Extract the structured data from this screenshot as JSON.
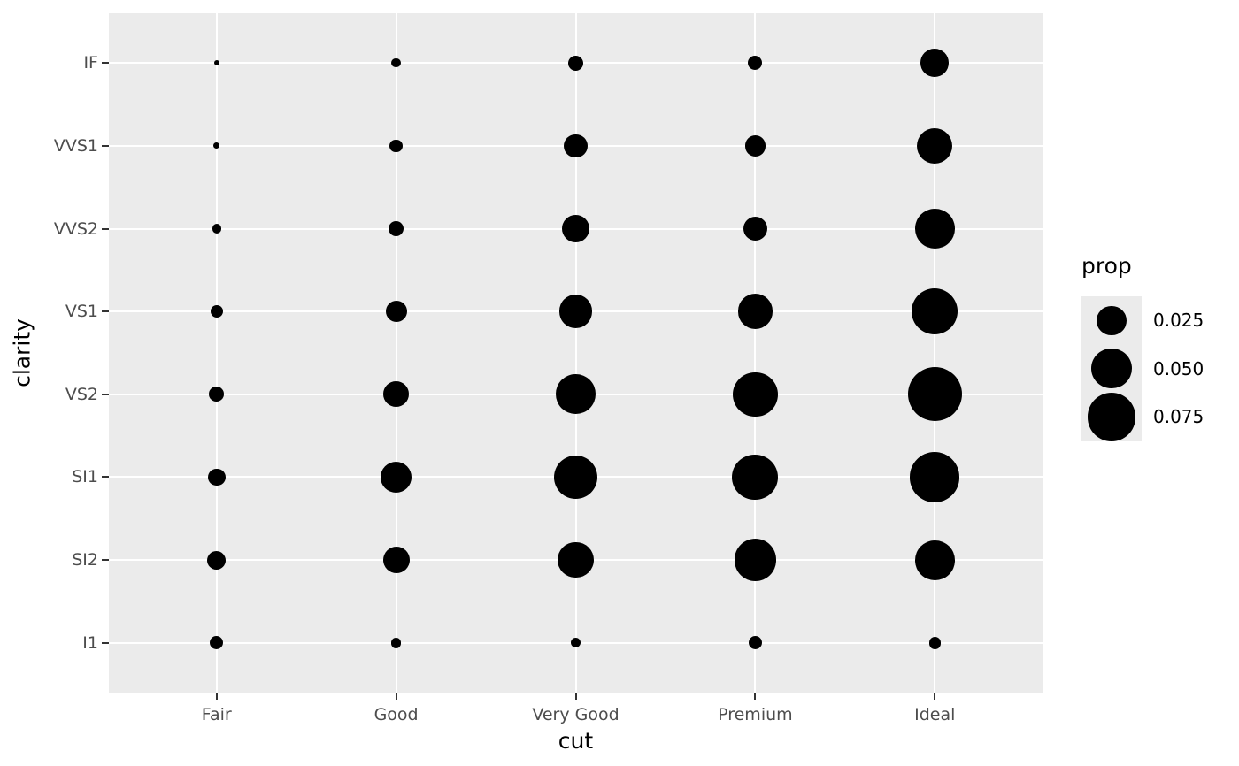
{
  "chart_data": {
    "type": "bubble",
    "title": "",
    "xlabel": "cut",
    "ylabel": "clarity",
    "x_categories": [
      "Fair",
      "Good",
      "Very Good",
      "Premium",
      "Ideal"
    ],
    "y_categories_top_to_bottom": [
      "IF",
      "VVS1",
      "VVS2",
      "VS1",
      "VS2",
      "SI1",
      "SI2",
      "I1"
    ],
    "size_variable": "prop",
    "grid": "major gridlines only, white on gray panel",
    "legend_position": "right",
    "points": [
      {
        "x": "Fair",
        "y": "IF",
        "prop": 0.00017
      },
      {
        "x": "Fair",
        "y": "VVS1",
        "prop": 0.00032
      },
      {
        "x": "Fair",
        "y": "VVS2",
        "prop": 0.00128
      },
      {
        "x": "Fair",
        "y": "VS1",
        "prop": 0.00315
      },
      {
        "x": "Fair",
        "y": "VS2",
        "prop": 0.00484
      },
      {
        "x": "Fair",
        "y": "SI1",
        "prop": 0.00756
      },
      {
        "x": "Fair",
        "y": "SI2",
        "prop": 0.00864
      },
      {
        "x": "Fair",
        "y": "I1",
        "prop": 0.00389
      },
      {
        "x": "Good",
        "y": "IF",
        "prop": 0.00132
      },
      {
        "x": "Good",
        "y": "VVS1",
        "prop": 0.00345
      },
      {
        "x": "Good",
        "y": "VVS2",
        "prop": 0.0053
      },
      {
        "x": "Good",
        "y": "VS1",
        "prop": 0.01201
      },
      {
        "x": "Good",
        "y": "VS2",
        "prop": 0.01813
      },
      {
        "x": "Good",
        "y": "SI1",
        "prop": 0.02892
      },
      {
        "x": "Good",
        "y": "SI2",
        "prop": 0.02004
      },
      {
        "x": "Good",
        "y": "I1",
        "prop": 0.00178
      },
      {
        "x": "Very Good",
        "y": "IF",
        "prop": 0.00497
      },
      {
        "x": "Very Good",
        "y": "VVS1",
        "prop": 0.01463
      },
      {
        "x": "Very Good",
        "y": "VVS2",
        "prop": 0.0229
      },
      {
        "x": "Very Good",
        "y": "VS1",
        "prop": 0.03291
      },
      {
        "x": "Very Good",
        "y": "VS2",
        "prop": 0.04803
      },
      {
        "x": "Very Good",
        "y": "SI1",
        "prop": 0.06007
      },
      {
        "x": "Very Good",
        "y": "SI2",
        "prop": 0.03893
      },
      {
        "x": "Very Good",
        "y": "I1",
        "prop": 0.00156
      },
      {
        "x": "Premium",
        "y": "IF",
        "prop": 0.00426
      },
      {
        "x": "Premium",
        "y": "VVS1",
        "prop": 0.01142
      },
      {
        "x": "Premium",
        "y": "VVS2",
        "prop": 0.01613
      },
      {
        "x": "Premium",
        "y": "VS1",
        "prop": 0.03688
      },
      {
        "x": "Premium",
        "y": "VS2",
        "prop": 0.06224
      },
      {
        "x": "Premium",
        "y": "SI1",
        "prop": 0.06628
      },
      {
        "x": "Premium",
        "y": "SI2",
        "prop": 0.05467
      },
      {
        "x": "Premium",
        "y": "I1",
        "prop": 0.0038
      },
      {
        "x": "Ideal",
        "y": "IF",
        "prop": 0.02247
      },
      {
        "x": "Ideal",
        "y": "VVS1",
        "prop": 0.03795
      },
      {
        "x": "Ideal",
        "y": "VVS2",
        "prop": 0.04831
      },
      {
        "x": "Ideal",
        "y": "VS1",
        "prop": 0.06654
      },
      {
        "x": "Ideal",
        "y": "VS2",
        "prop": 0.09401
      },
      {
        "x": "Ideal",
        "y": "SI1",
        "prop": 0.07939
      },
      {
        "x": "Ideal",
        "y": "SI2",
        "prop": 0.04817
      },
      {
        "x": "Ideal",
        "y": "I1",
        "prop": 0.00271
      }
    ],
    "legend": {
      "title": "prop",
      "entries": [
        {
          "label": "0.025",
          "value": 0.025
        },
        {
          "label": "0.050",
          "value": 0.05
        },
        {
          "label": "0.075",
          "value": 0.075
        }
      ]
    },
    "colors": {
      "panel_background": "#EBEBEB",
      "gridline": "#FFFFFF",
      "point_fill": "#000000",
      "tick_label": "#4D4D4D",
      "tick_mark": "#333333",
      "axis_title": "#000000",
      "figure_background": "#FFFFFF"
    }
  }
}
